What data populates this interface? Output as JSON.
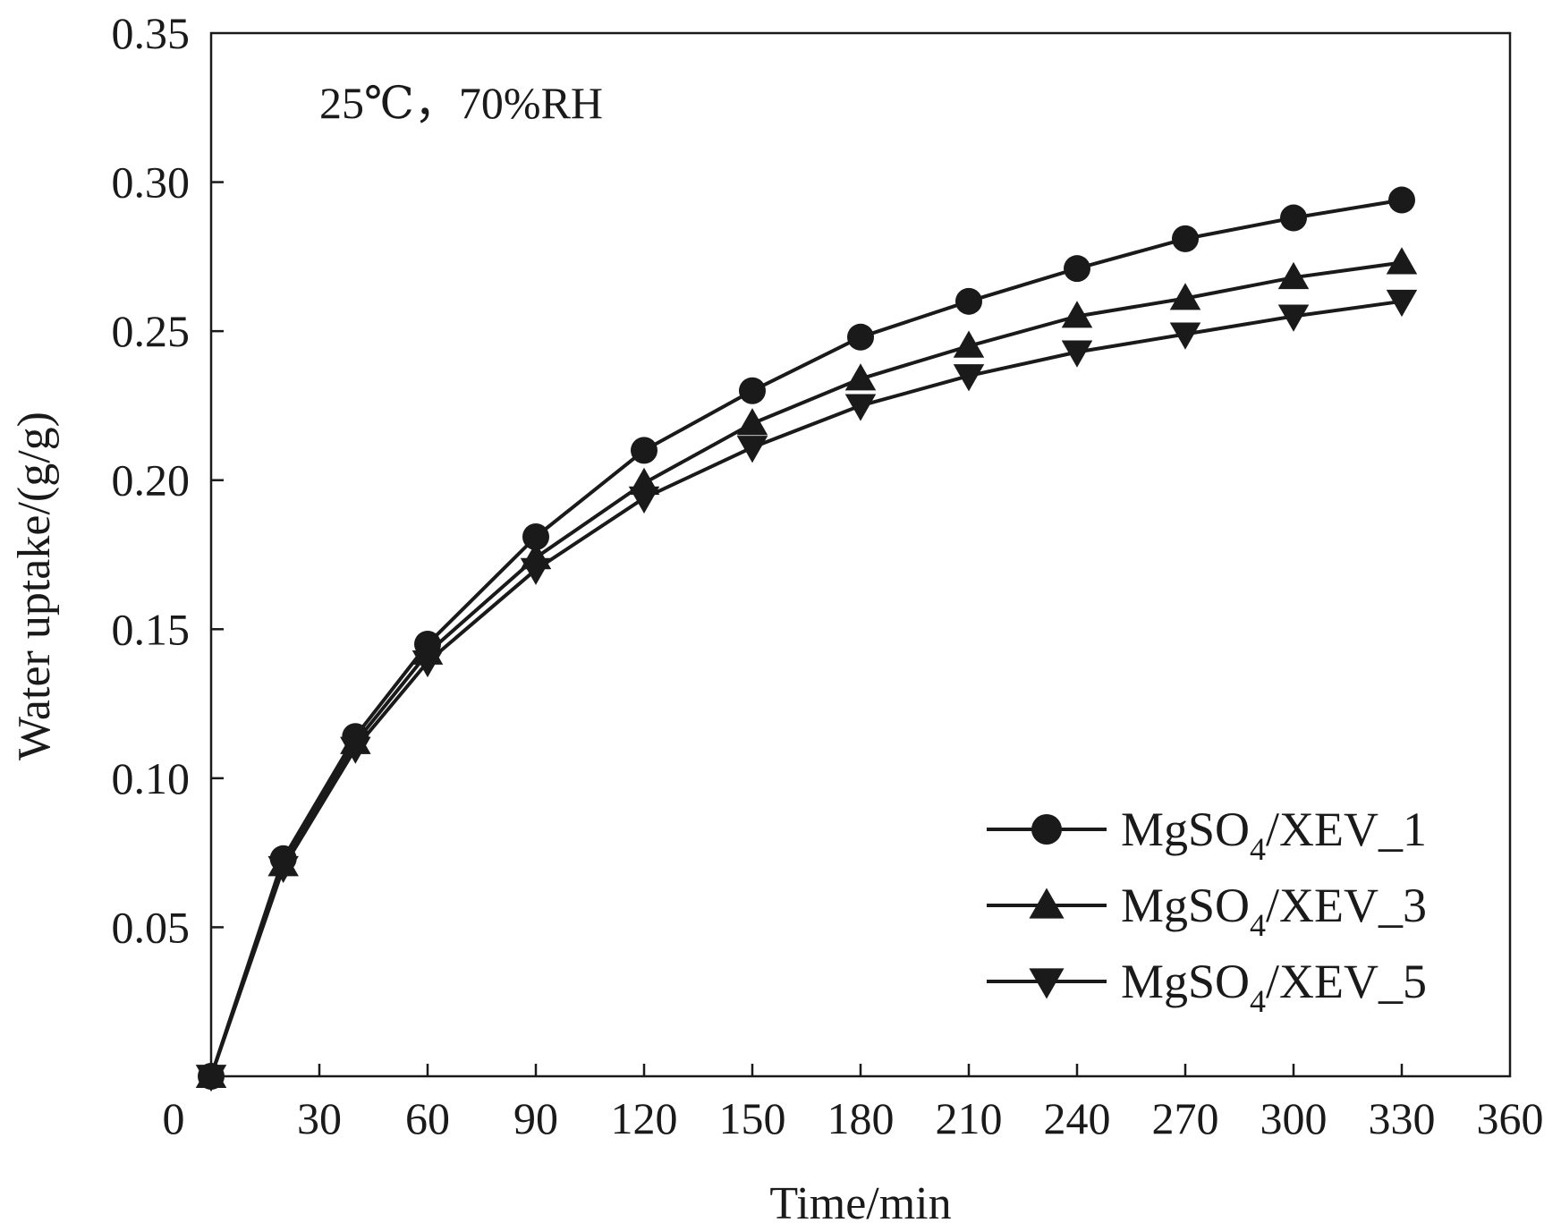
{
  "chart_data": {
    "type": "line",
    "title": "",
    "annotation": "25℃，70%RH",
    "xlabel": "Time/min",
    "ylabel": "Water uptake/(g/g)",
    "xlim": [
      0,
      360
    ],
    "ylim": [
      0,
      0.35
    ],
    "xticks": [
      0,
      30,
      60,
      90,
      120,
      150,
      180,
      210,
      240,
      270,
      300,
      330,
      360
    ],
    "xtick_labels": [
      "0",
      "30",
      "60",
      "90",
      "120",
      "150",
      "180",
      "210",
      "240",
      "270",
      "300",
      "330",
      "360"
    ],
    "yticks": [
      0.05,
      0.1,
      0.15,
      0.2,
      0.25,
      0.3,
      0.35
    ],
    "ytick_labels": [
      "0.05",
      "0.10",
      "0.15",
      "0.20",
      "0.25",
      "0.30",
      "0.35"
    ],
    "grid": false,
    "legend_position": "bottom-right",
    "x": [
      0,
      20,
      40,
      60,
      90,
      120,
      150,
      180,
      210,
      240,
      270,
      300,
      330
    ],
    "series": [
      {
        "name": "MgSO4/XEV_1",
        "label_main": "MgSO",
        "label_sub": "4",
        "label_tail": "/XEV_1",
        "marker": "circle",
        "values": [
          0.0,
          0.073,
          0.114,
          0.145,
          0.181,
          0.21,
          0.23,
          0.248,
          0.26,
          0.271,
          0.281,
          0.288,
          0.294
        ]
      },
      {
        "name": "MgSO4/XEV_3",
        "label_main": "MgSO",
        "label_sub": "4",
        "label_tail": "/XEV_3",
        "marker": "triangle-up",
        "values": [
          0.0,
          0.071,
          0.112,
          0.142,
          0.174,
          0.199,
          0.219,
          0.234,
          0.245,
          0.255,
          0.261,
          0.268,
          0.273
        ]
      },
      {
        "name": "MgSO4/XEV_5",
        "label_main": "MgSO",
        "label_sub": "4",
        "label_tail": "/XEV_5",
        "marker": "triangle-down",
        "values": [
          0.0,
          0.07,
          0.11,
          0.139,
          0.17,
          0.194,
          0.211,
          0.225,
          0.235,
          0.243,
          0.249,
          0.255,
          0.26
        ]
      }
    ],
    "colors": {
      "line": "#1a1a1a",
      "axis": "#1a1a1a",
      "background": "#ffffff"
    }
  }
}
